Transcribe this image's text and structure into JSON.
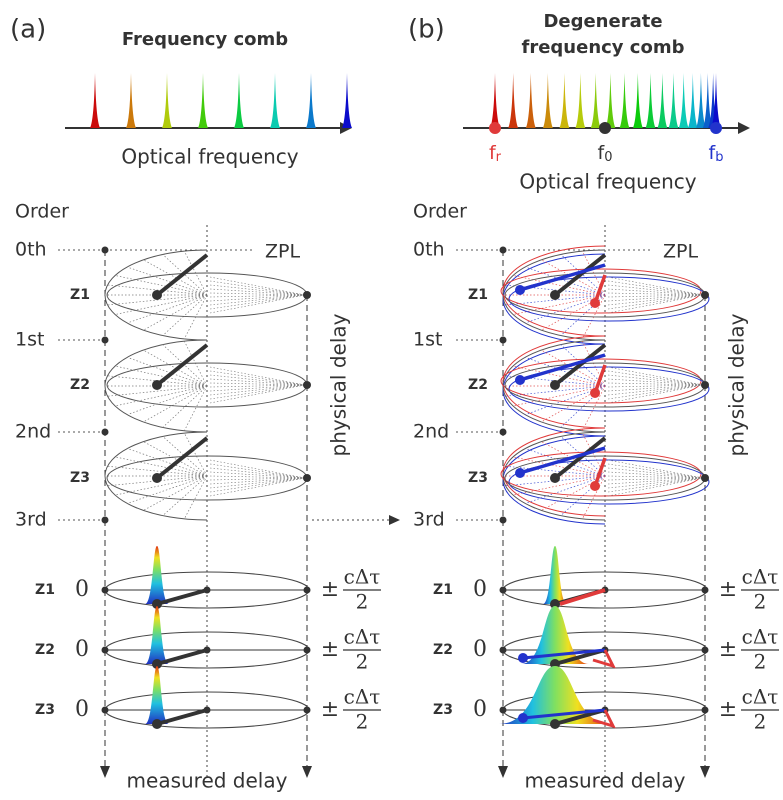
{
  "panels": [
    {
      "label": "(a)",
      "title_lines": [
        "Frequency comb"
      ],
      "axis_label": "Optical frequency",
      "order_label": "Order",
      "orders": [
        "0th",
        "1st",
        "2nd",
        "3rd"
      ],
      "zpl": "ZPL",
      "physical_delay": "physical delay",
      "planes": [
        "Z1",
        "Z2",
        "Z3"
      ],
      "zero": "0",
      "plus_minus": "±",
      "numerator": "cΔτ",
      "denominator": "2",
      "measured_delay": "measured delay"
    },
    {
      "label": "(b)",
      "title_lines": [
        "Degenerate",
        "frequency comb"
      ],
      "markers": [
        {
          "base": "f",
          "sub": "r"
        },
        {
          "base": "f",
          "sub": "0"
        },
        {
          "base": "f",
          "sub": "b"
        }
      ],
      "axis_label": "Optical frequency",
      "order_label": "Order",
      "orders": [
        "0th",
        "1st",
        "2nd",
        "3rd"
      ],
      "zpl": "ZPL",
      "physical_delay": "physical delay",
      "planes": [
        "Z1",
        "Z2",
        "Z3"
      ],
      "zero": "0",
      "plus_minus": "±",
      "numerator": "cΔτ",
      "denominator": "2",
      "measured_delay": "measured delay"
    }
  ]
}
